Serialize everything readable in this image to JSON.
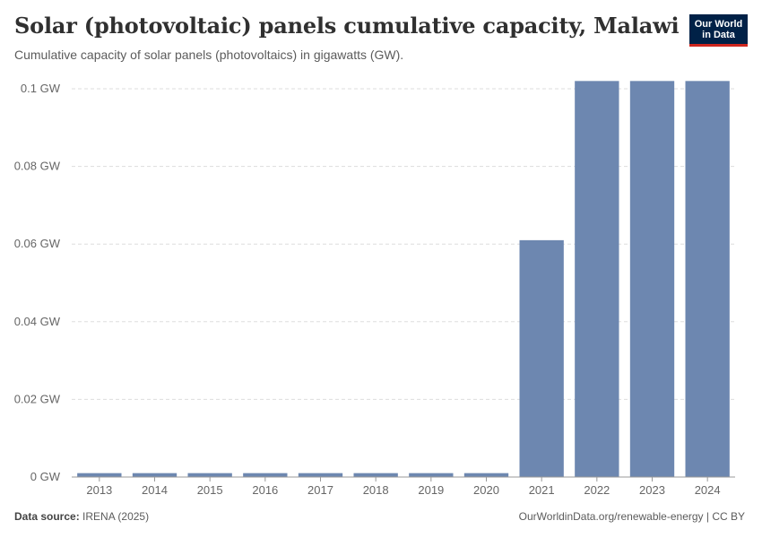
{
  "header": {
    "title": "Solar (photovoltaic) panels cumulative capacity, Malawi",
    "subtitle": "Cumulative capacity of solar panels (photovoltaics) in gigawatts (GW)."
  },
  "logo": {
    "line1": "Our World",
    "line2": "in Data"
  },
  "footer": {
    "source_label": "Data source:",
    "source_value": "IRENA (2025)",
    "credit": "OurWorldinData.org/renewable-energy | CC BY"
  },
  "colors": {
    "bar": "#6d87b0",
    "grid": "#dddddd",
    "axis": "#999999",
    "tick_text": "#666666"
  },
  "chart_data": {
    "type": "bar",
    "title": "Solar (photovoltaic) panels cumulative capacity, Malawi",
    "xlabel": "",
    "ylabel": "",
    "unit": "GW",
    "categories": [
      "2013",
      "2014",
      "2015",
      "2016",
      "2017",
      "2018",
      "2019",
      "2020",
      "2021",
      "2022",
      "2023",
      "2024"
    ],
    "values": [
      0.001,
      0.001,
      0.001,
      0.001,
      0.001,
      0.001,
      0.001,
      0.001,
      0.061,
      0.102,
      0.102,
      0.102
    ],
    "ylim": [
      0,
      0.1
    ],
    "yticks": [
      0,
      0.02,
      0.04,
      0.06,
      0.08,
      0.1
    ],
    "ytick_labels": [
      "0 GW",
      "0.02 GW",
      "0.04 GW",
      "0.06 GW",
      "0.08 GW",
      "0.1 GW"
    ],
    "grid": true
  }
}
